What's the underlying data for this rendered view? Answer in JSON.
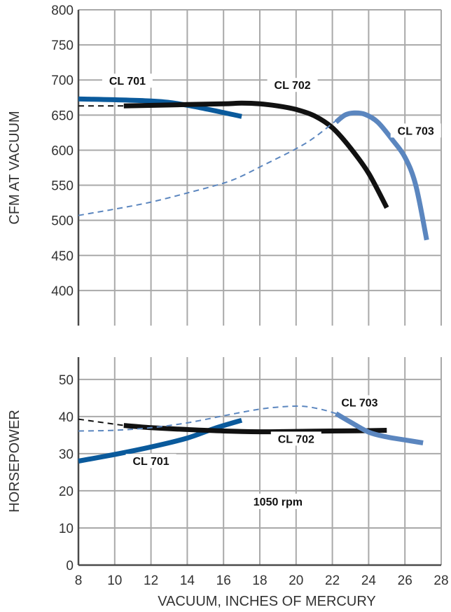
{
  "chart_data": [
    {
      "type": "line",
      "ylabel": "CFM AT VACUUM",
      "xlim": [
        8,
        28
      ],
      "ylim": [
        350,
        800
      ],
      "yticks": [
        400,
        450,
        500,
        550,
        600,
        650,
        700,
        750,
        800
      ],
      "grid": true,
      "series": [
        {
          "name": "CL 701",
          "color": "#0a5a9c",
          "style": "solid",
          "points": [
            [
              8,
              673
            ],
            [
              12,
              670
            ],
            [
              14,
              664
            ],
            [
              17,
              648
            ]
          ]
        },
        {
          "name": "CL 701",
          "color": "#111111",
          "style": "dashed",
          "points": [
            [
              8,
              663
            ],
            [
              10.5,
              663
            ]
          ]
        },
        {
          "name": "CL 702",
          "color": "#111111",
          "style": "solid",
          "points": [
            [
              10.5,
              663
            ],
            [
              14,
              665
            ],
            [
              16,
              666
            ],
            [
              17,
              667
            ],
            [
              18,
              666
            ],
            [
              19,
              663
            ],
            [
              20,
              658
            ],
            [
              21,
              649
            ],
            [
              22,
              632
            ],
            [
              23,
              603
            ],
            [
              24,
              567
            ],
            [
              25,
              518
            ]
          ]
        },
        {
          "name": "CL 703",
          "color": "#5b86bf",
          "style": "dashed",
          "points": [
            [
              8,
              507
            ],
            [
              10,
              516
            ],
            [
              12,
              526
            ],
            [
              14,
              539
            ],
            [
              16,
              553
            ],
            [
              17,
              563
            ],
            [
              18,
              576
            ],
            [
              20,
              602
            ],
            [
              21,
              618
            ],
            [
              22,
              638
            ],
            [
              22.5,
              648
            ]
          ]
        },
        {
          "name": "CL 703",
          "color": "#5b86bf",
          "style": "solid",
          "points": [
            [
              22.2,
              640
            ],
            [
              22.7,
              650
            ],
            [
              23.2,
              653
            ],
            [
              23.8,
              651
            ],
            [
              24.5,
              640
            ],
            [
              25.3,
              615
            ],
            [
              26,
              590
            ],
            [
              26.6,
              550
            ],
            [
              27.2,
              472
            ]
          ]
        }
      ],
      "labels": [
        {
          "text": "CL 701",
          "x": 10.7,
          "y": 695
        },
        {
          "text": "CL 702",
          "x": 19.8,
          "y": 689
        },
        {
          "text": "CL 703",
          "x": 26.6,
          "y": 624
        }
      ]
    },
    {
      "type": "line",
      "ylabel": "HORSEPOWER",
      "xlabel": "VACUUM, INCHES OF MERCURY",
      "xlim": [
        8,
        28
      ],
      "ylim": [
        0,
        56
      ],
      "xticks": [
        8,
        10,
        12,
        14,
        16,
        18,
        20,
        22,
        24,
        26,
        28
      ],
      "yticks": [
        0,
        10,
        20,
        30,
        40,
        50
      ],
      "grid": true,
      "series": [
        {
          "name": "CL 701",
          "color": "#0a5a9c",
          "style": "solid",
          "points": [
            [
              8,
              28
            ],
            [
              10,
              29.8
            ],
            [
              12,
              31.8
            ],
            [
              14,
              34.2
            ],
            [
              15.5,
              36.8
            ],
            [
              17,
              39
            ]
          ]
        },
        {
          "name": "CL 702",
          "color": "#111111",
          "style": "dashed",
          "points": [
            [
              8,
              39.3
            ],
            [
              10.5,
              37.6
            ]
          ]
        },
        {
          "name": "CL 702",
          "color": "#111111",
          "style": "solid",
          "points": [
            [
              10.5,
              37.6
            ],
            [
              12,
              37
            ],
            [
              14,
              36.5
            ],
            [
              16,
              36.1
            ],
            [
              18,
              35.9
            ],
            [
              20,
              36
            ],
            [
              22,
              36.1
            ],
            [
              24,
              36.2
            ],
            [
              25,
              36.3
            ]
          ]
        },
        {
          "name": "CL 703",
          "color": "#5b86bf",
          "style": "dashed",
          "points": [
            [
              8,
              36.1
            ],
            [
              10,
              36.3
            ],
            [
              12,
              37
            ],
            [
              14,
              38.3
            ],
            [
              16,
              40.2
            ],
            [
              18,
              42
            ],
            [
              19.5,
              42.7
            ],
            [
              20.5,
              42.7
            ],
            [
              21.5,
              41.8
            ],
            [
              22.2,
              40.8
            ]
          ]
        },
        {
          "name": "CL 703",
          "color": "#5b86bf",
          "style": "solid",
          "points": [
            [
              22.2,
              40.8
            ],
            [
              23,
              38.5
            ],
            [
              24,
              35.8
            ],
            [
              25,
              34.5
            ],
            [
              26,
              33.7
            ],
            [
              27,
              32.9
            ]
          ]
        }
      ],
      "labels": [
        {
          "text": "CL 703",
          "x": 23.5,
          "y": 43.1
        },
        {
          "text": "CL 702",
          "x": 20,
          "y": 33.3
        },
        {
          "text": "CL 701",
          "x": 12,
          "y": 27.3
        }
      ],
      "annotations": [
        {
          "text": "1050 rpm",
          "x": 19,
          "y": 16.4
        }
      ]
    }
  ]
}
